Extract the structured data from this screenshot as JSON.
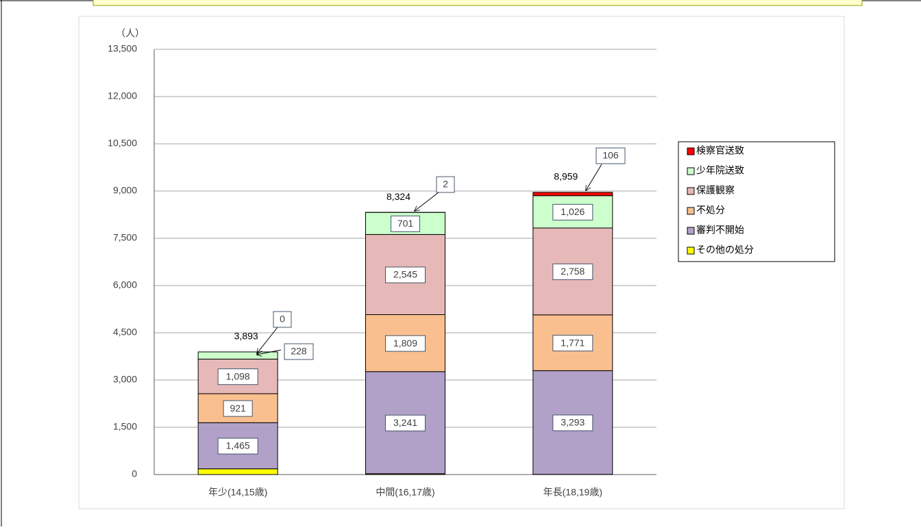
{
  "chart_data": {
    "type": "stacked_bar",
    "y_unit_label": "（人）",
    "categories": [
      "年少(14,15歳)",
      "中間(16,17歳)",
      "年長(18,19歳)"
    ],
    "series": [
      {
        "name": "その他の処分",
        "color": "#ffff00",
        "values": [
          181,
          26,
          5
        ]
      },
      {
        "name": "審判不開始",
        "color": "#b1a0c7",
        "values": [
          1465,
          3241,
          3293
        ],
        "value_labels": [
          "1,465",
          "3,241",
          "3,293"
        ]
      },
      {
        "name": "不処分",
        "color": "#fabf8f",
        "values": [
          921,
          1809,
          1771
        ],
        "value_labels": [
          "921",
          "1,809",
          "1,771"
        ]
      },
      {
        "name": "保護観察",
        "color": "#e6b8b7",
        "values": [
          1098,
          2545,
          2758
        ],
        "value_labels": [
          "1,098",
          "2,545",
          "2,758"
        ]
      },
      {
        "name": "少年院送致",
        "color": "#ccffcc",
        "values": [
          228,
          701,
          1026
        ],
        "value_labels": [
          "228",
          "701",
          "1,026"
        ]
      },
      {
        "name": "検察官送致",
        "color": "#ff0000",
        "values": [
          0,
          2,
          106
        ],
        "value_labels": [
          "0",
          "2",
          "106"
        ]
      }
    ],
    "totals": [
      3893,
      8324,
      8959
    ],
    "total_labels": [
      "3,893",
      "8,324",
      "8,959"
    ],
    "ylim": [
      0,
      13500
    ],
    "yticks": [
      0,
      {
        "value": 1500,
        "label": "1,500"
      },
      {
        "value": 3000,
        "label": "3,000"
      },
      {
        "value": 4500,
        "label": "4,500"
      },
      {
        "value": 6000,
        "label": "6,000"
      },
      {
        "value": 7500,
        "label": "7,500"
      },
      {
        "value": 9000,
        "label": "9,000"
      },
      {
        "value": 10500,
        "label": "10,500"
      },
      {
        "value": 12000,
        "label": "12,000"
      },
      {
        "value": 13500,
        "label": "13,500"
      }
    ],
    "grid": true,
    "legend": "right"
  }
}
